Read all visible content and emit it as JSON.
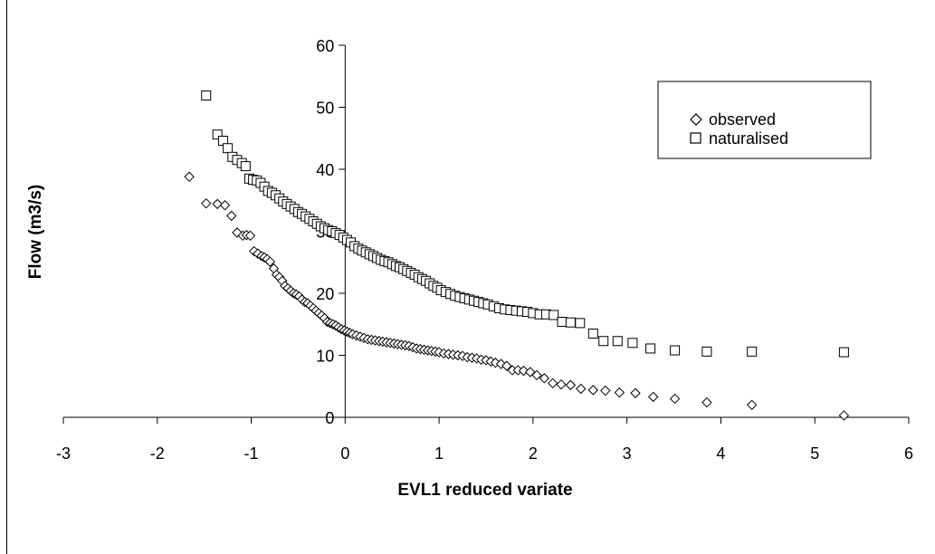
{
  "chart_data": {
    "type": "scatter",
    "title": "",
    "xlabel": "EVL1 reduced variate",
    "ylabel": "Flow (m3/s)",
    "xlim": [
      -3,
      6
    ],
    "ylim": [
      0,
      60
    ],
    "xticks": [
      "-3",
      "-2",
      "-1",
      "0",
      "1",
      "2",
      "3",
      "4",
      "5",
      "6"
    ],
    "yticks": [
      "0",
      "10",
      "20",
      "30",
      "40",
      "50",
      "60"
    ],
    "grid": false,
    "legend_position": "top-right",
    "series": [
      {
        "name": "observed",
        "marker": "diamond",
        "color": "#000000",
        "points": [
          [
            -1.66,
            38.8
          ],
          [
            -1.48,
            34.5
          ],
          [
            -1.36,
            34.4
          ],
          [
            -1.28,
            34.2
          ],
          [
            -1.21,
            32.5
          ],
          [
            -1.15,
            29.8
          ],
          [
            -1.09,
            29.3
          ],
          [
            -1.05,
            29.4
          ],
          [
            -1.01,
            29.3
          ],
          [
            -0.97,
            26.8
          ],
          [
            -0.93,
            26.4
          ],
          [
            -0.89,
            26.0
          ],
          [
            -0.86,
            25.8
          ],
          [
            -0.83,
            25.5
          ],
          [
            -0.8,
            25.1
          ],
          [
            -0.76,
            24.0
          ],
          [
            -0.73,
            23.0
          ],
          [
            -0.7,
            22.6
          ],
          [
            -0.67,
            22.0
          ],
          [
            -0.64,
            21.2
          ],
          [
            -0.61,
            20.8
          ],
          [
            -0.58,
            20.4
          ],
          [
            -0.55,
            20.0
          ],
          [
            -0.52,
            19.8
          ],
          [
            -0.49,
            19.5
          ],
          [
            -0.46,
            19.0
          ],
          [
            -0.43,
            18.6
          ],
          [
            -0.4,
            18.4
          ],
          [
            -0.37,
            18.0
          ],
          [
            -0.34,
            17.6
          ],
          [
            -0.31,
            17.2
          ],
          [
            -0.28,
            16.8
          ],
          [
            -0.25,
            16.4
          ],
          [
            -0.22,
            16.0
          ],
          [
            -0.19,
            15.4
          ],
          [
            -0.16,
            15.2
          ],
          [
            -0.13,
            15.0
          ],
          [
            -0.1,
            14.8
          ],
          [
            -0.07,
            14.5
          ],
          [
            -0.04,
            14.2
          ],
          [
            -0.01,
            14.0
          ],
          [
            0.02,
            13.8
          ],
          [
            0.05,
            13.6
          ],
          [
            0.08,
            13.4
          ],
          [
            0.12,
            13.2
          ],
          [
            0.16,
            13.0
          ],
          [
            0.2,
            12.8
          ],
          [
            0.24,
            12.6
          ],
          [
            0.28,
            12.5
          ],
          [
            0.32,
            12.4
          ],
          [
            0.36,
            12.3
          ],
          [
            0.4,
            12.2
          ],
          [
            0.44,
            12.1
          ],
          [
            0.48,
            12.0
          ],
          [
            0.52,
            11.9
          ],
          [
            0.56,
            11.8
          ],
          [
            0.6,
            11.7
          ],
          [
            0.64,
            11.6
          ],
          [
            0.68,
            11.5
          ],
          [
            0.72,
            11.3
          ],
          [
            0.76,
            11.1
          ],
          [
            0.8,
            11.0
          ],
          [
            0.84,
            10.9
          ],
          [
            0.88,
            10.8
          ],
          [
            0.92,
            10.7
          ],
          [
            0.96,
            10.6
          ],
          [
            1.0,
            10.5
          ],
          [
            1.05,
            10.3
          ],
          [
            1.1,
            10.2
          ],
          [
            1.15,
            10.1
          ],
          [
            1.2,
            10.0
          ],
          [
            1.25,
            9.9
          ],
          [
            1.3,
            9.7
          ],
          [
            1.35,
            9.6
          ],
          [
            1.4,
            9.5
          ],
          [
            1.45,
            9.3
          ],
          [
            1.5,
            9.2
          ],
          [
            1.55,
            9.0
          ],
          [
            1.6,
            8.8
          ],
          [
            1.66,
            8.6
          ],
          [
            1.72,
            8.3
          ],
          [
            1.78,
            7.6
          ],
          [
            1.84,
            7.6
          ],
          [
            1.9,
            7.5
          ],
          [
            1.97,
            7.3
          ],
          [
            2.04,
            6.8
          ],
          [
            2.12,
            6.3
          ],
          [
            2.21,
            5.5
          ],
          [
            2.3,
            5.3
          ],
          [
            2.4,
            5.2
          ],
          [
            2.51,
            4.6
          ],
          [
            2.64,
            4.4
          ],
          [
            2.77,
            4.3
          ],
          [
            2.92,
            4.0
          ],
          [
            3.09,
            3.9
          ],
          [
            3.28,
            3.3
          ],
          [
            3.51,
            3.0
          ],
          [
            3.85,
            2.4
          ],
          [
            4.33,
            2.0
          ],
          [
            5.31,
            0.3
          ]
        ]
      },
      {
        "name": "naturalised",
        "marker": "square",
        "color": "#000000",
        "points": [
          [
            -1.48,
            51.9
          ],
          [
            -1.36,
            45.6
          ],
          [
            -1.3,
            44.6
          ],
          [
            -1.25,
            43.4
          ],
          [
            -1.2,
            42.0
          ],
          [
            -1.15,
            41.5
          ],
          [
            -1.1,
            41.0
          ],
          [
            -1.06,
            40.5
          ],
          [
            -1.02,
            38.5
          ],
          [
            -0.98,
            38.3
          ],
          [
            -0.94,
            38.2
          ],
          [
            -0.9,
            37.8
          ],
          [
            -0.86,
            37.2
          ],
          [
            -0.82,
            36.5
          ],
          [
            -0.78,
            36.2
          ],
          [
            -0.74,
            35.8
          ],
          [
            -0.7,
            35.3
          ],
          [
            -0.66,
            34.8
          ],
          [
            -0.62,
            34.4
          ],
          [
            -0.58,
            34.0
          ],
          [
            -0.54,
            33.6
          ],
          [
            -0.5,
            33.1
          ],
          [
            -0.46,
            32.8
          ],
          [
            -0.42,
            32.4
          ],
          [
            -0.38,
            32.0
          ],
          [
            -0.34,
            31.6
          ],
          [
            -0.3,
            31.2
          ],
          [
            -0.26,
            30.8
          ],
          [
            -0.22,
            30.5
          ],
          [
            -0.18,
            30.2
          ],
          [
            -0.14,
            30.0
          ],
          [
            -0.1,
            29.7
          ],
          [
            -0.06,
            29.4
          ],
          [
            -0.02,
            29.0
          ],
          [
            0.02,
            28.6
          ],
          [
            0.06,
            28.2
          ],
          [
            0.1,
            27.6
          ],
          [
            0.14,
            27.2
          ],
          [
            0.18,
            26.9
          ],
          [
            0.22,
            26.6
          ],
          [
            0.26,
            26.3
          ],
          [
            0.3,
            26.0
          ],
          [
            0.34,
            25.7
          ],
          [
            0.38,
            25.4
          ],
          [
            0.42,
            25.2
          ],
          [
            0.46,
            25.0
          ],
          [
            0.5,
            24.7
          ],
          [
            0.54,
            24.4
          ],
          [
            0.58,
            24.2
          ],
          [
            0.62,
            23.9
          ],
          [
            0.66,
            23.6
          ],
          [
            0.7,
            23.3
          ],
          [
            0.74,
            23.0
          ],
          [
            0.78,
            22.6
          ],
          [
            0.82,
            22.3
          ],
          [
            0.86,
            22.0
          ],
          [
            0.9,
            21.6
          ],
          [
            0.94,
            21.2
          ],
          [
            0.98,
            20.9
          ],
          [
            1.02,
            20.5
          ],
          [
            1.07,
            20.2
          ],
          [
            1.12,
            19.9
          ],
          [
            1.17,
            19.6
          ],
          [
            1.22,
            19.4
          ],
          [
            1.27,
            19.2
          ],
          [
            1.32,
            19.0
          ],
          [
            1.37,
            18.8
          ],
          [
            1.42,
            18.6
          ],
          [
            1.47,
            18.4
          ],
          [
            1.52,
            18.2
          ],
          [
            1.58,
            17.9
          ],
          [
            1.64,
            17.6
          ],
          [
            1.7,
            17.4
          ],
          [
            1.76,
            17.3
          ],
          [
            1.82,
            17.2
          ],
          [
            1.88,
            17.1
          ],
          [
            1.94,
            17.0
          ],
          [
            2.0,
            16.8
          ],
          [
            2.07,
            16.6
          ],
          [
            2.14,
            16.6
          ],
          [
            2.22,
            16.5
          ],
          [
            2.31,
            15.4
          ],
          [
            2.4,
            15.3
          ],
          [
            2.5,
            15.2
          ],
          [
            2.64,
            13.5
          ],
          [
            2.75,
            12.3
          ],
          [
            2.9,
            12.3
          ],
          [
            3.06,
            12.0
          ],
          [
            3.25,
            11.1
          ],
          [
            3.51,
            10.8
          ],
          [
            3.85,
            10.6
          ],
          [
            4.33,
            10.6
          ],
          [
            5.31,
            10.5
          ]
        ]
      }
    ]
  }
}
